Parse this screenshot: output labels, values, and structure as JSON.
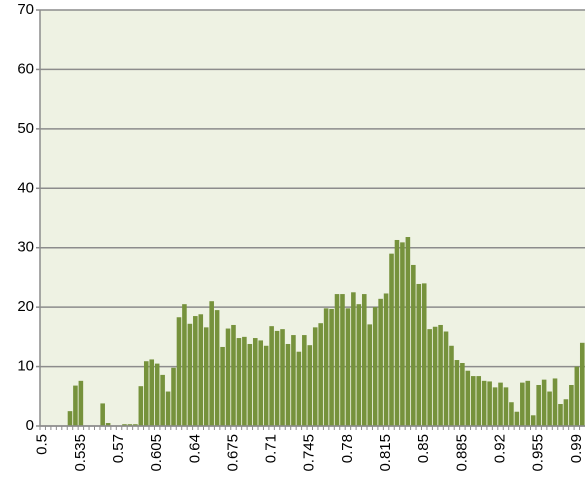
{
  "chart_data": {
    "type": "bar",
    "categories": [
      "0.5",
      null,
      null,
      null,
      null,
      null,
      null,
      "0.535",
      null,
      null,
      null,
      null,
      null,
      null,
      "0.57",
      null,
      null,
      null,
      null,
      null,
      null,
      "0.605",
      null,
      null,
      null,
      null,
      null,
      null,
      "0.64",
      null,
      null,
      null,
      null,
      null,
      null,
      "0.675",
      null,
      null,
      null,
      null,
      null,
      null,
      "0.71",
      null,
      null,
      null,
      null,
      null,
      null,
      "0.745",
      null,
      null,
      null,
      null,
      null,
      null,
      "0.78",
      null,
      null,
      null,
      null,
      null,
      null,
      "0.815",
      null,
      null,
      null,
      null,
      null,
      null,
      "0.85",
      null,
      null,
      null,
      null,
      null,
      null,
      "0.885",
      null,
      null,
      null,
      null,
      null,
      null,
      "0.92",
      null,
      null,
      null,
      null,
      null,
      null,
      "0.955",
      null,
      null,
      null,
      null,
      null,
      null,
      "0.99",
      null
    ],
    "values": [
      0,
      0,
      0,
      0,
      0,
      2.5,
      6.8,
      7.6,
      0,
      0,
      0,
      3.8,
      0.5,
      0,
      0,
      0.3,
      0.3,
      0.3,
      6.7,
      10.9,
      11.2,
      10.5,
      8.6,
      5.8,
      9.8,
      18.3,
      20.5,
      17.2,
      18.5,
      18.8,
      16.6,
      21,
      19.5,
      13.3,
      16.4,
      17,
      14.8,
      15,
      13.8,
      14.8,
      14.4,
      13.5,
      16.8,
      16,
      16.3,
      13.8,
      15.3,
      12.5,
      15.3,
      13.6,
      16.6,
      17.3,
      19.8,
      19.7,
      22.2,
      22.2,
      19.8,
      22.5,
      20.5,
      22.2,
      17.1,
      20,
      21.4,
      22.3,
      29,
      31.3,
      30.9,
      31.8,
      27.1,
      23.9,
      24,
      16.3,
      16.7,
      17,
      15.9,
      13.5,
      11.1,
      10.6,
      9.3,
      8.4,
      8.4,
      7.6,
      7.5,
      6.5,
      7.3,
      6.5,
      4,
      2.4,
      7.3,
      7.6,
      1.8,
      6.9,
      7.8,
      5.8,
      8,
      3.7,
      4.5,
      6.9,
      10,
      14
    ],
    "color": "#76923c",
    "ylim": [
      0,
      70
    ],
    "yticks": [
      0,
      10,
      20,
      30,
      40,
      50,
      60,
      70
    ],
    "grid": true
  }
}
